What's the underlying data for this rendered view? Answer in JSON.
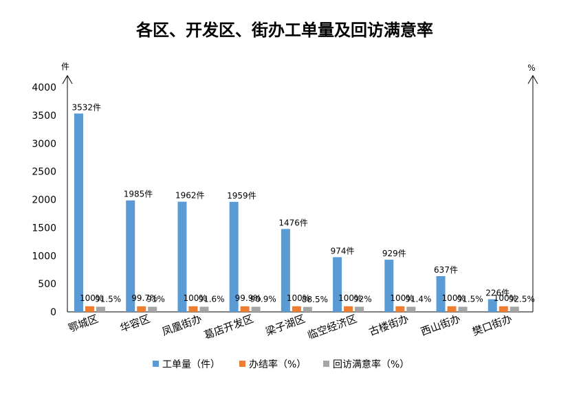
{
  "chart_data": {
    "type": "bar",
    "title": "各区、开发区、街办工单量及回访满意率",
    "left_axis_unit": "件",
    "right_axis_unit": "%",
    "ylim": [
      0,
      4000
    ],
    "yticks": [
      "0",
      "500",
      "1000",
      "1500",
      "2000",
      "2500",
      "3000",
      "3500",
      "4000"
    ],
    "categories": [
      "鄂城区",
      "华容区",
      "凤凰街办",
      "葛店开发区",
      "梁子湖区",
      "临空经济区",
      "古楼街办",
      "西山街办",
      "樊口街办"
    ],
    "series": [
      {
        "name": "工单量（件）",
        "color": "#5B9BD5",
        "values": [
          3532,
          1985,
          1962,
          1959,
          1476,
          974,
          929,
          637,
          226
        ],
        "labels": [
          "3532件",
          "1985件",
          "1962件",
          "1959件",
          "1476件",
          "974件",
          "929件",
          "637件",
          "226件"
        ]
      },
      {
        "name": "办结率（%）",
        "color": "#ED7D31",
        "values": [
          100,
          99.7,
          100,
          99.9,
          100,
          100,
          100,
          100,
          100
        ],
        "labels": [
          "100%",
          "99.7%",
          "100%",
          "99.9%",
          "100%",
          "100%",
          "100%",
          "100%",
          "100%"
        ]
      },
      {
        "name": "回访满意率（%）",
        "color": "#A5A5A5",
        "values": [
          91.5,
          91,
          91.6,
          90.9,
          88.5,
          92,
          91.4,
          91.5,
          92.5
        ],
        "labels": [
          "91.5%",
          "91%",
          "91.6%",
          "90.9%",
          "88.5%",
          "92%",
          "91.4%",
          "91.5%",
          "92.5%"
        ]
      }
    ],
    "legend": "bottom",
    "grid": false
  }
}
